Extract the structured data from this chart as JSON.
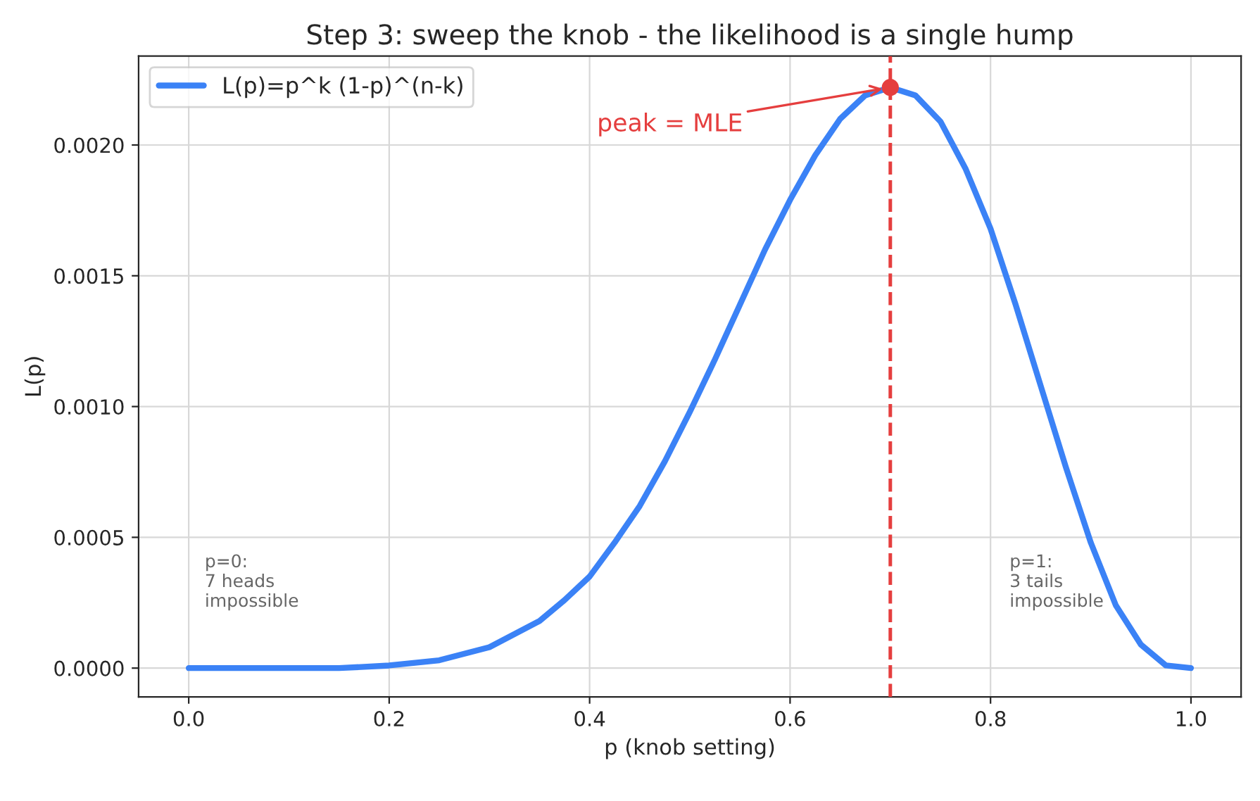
{
  "chart_data": {
    "type": "line",
    "title": "Step 3: sweep the knob - the likelihood is a single hump",
    "xlabel": "p (knob setting)",
    "ylabel": "L(p)",
    "series": [
      {
        "name": "L(p)=p^k (1-p)^(n-k)",
        "color": "#3b82f6",
        "x": [
          0,
          0.05,
          0.1,
          0.15,
          0.2,
          0.25,
          0.3,
          0.35,
          0.375,
          0.4,
          0.425,
          0.45,
          0.475,
          0.5,
          0.525,
          0.55,
          0.575,
          0.6,
          0.625,
          0.65,
          0.675,
          0.7,
          0.725,
          0.75,
          0.775,
          0.8,
          0.825,
          0.85,
          0.875,
          0.9,
          0.925,
          0.95,
          0.975,
          1.0
        ],
        "values": [
          0,
          0,
          0,
          0,
          1e-05,
          3e-05,
          8e-05,
          0.00018,
          0.00026,
          0.00035,
          0.00048,
          0.00062,
          0.00079,
          0.00098,
          0.00118,
          0.00139,
          0.0016,
          0.00179,
          0.00196,
          0.0021,
          0.00219,
          0.00222,
          0.00219,
          0.00209,
          0.00191,
          0.00168,
          0.00139,
          0.00108,
          0.00077,
          0.00048,
          0.00024,
          9e-05,
          1e-05,
          0
        ]
      },
      {
        "type": "scatter",
        "color": "#e53e3e",
        "x": [
          0.7
        ],
        "values": [
          0.00222
        ]
      }
    ],
    "ref_lines": [
      {
        "axis": "x",
        "value": 0.7,
        "color": "#e53e3e",
        "line_style": "dashed"
      }
    ],
    "annotations": [
      {
        "text": "peak = MLE",
        "x": 0.7,
        "y": 0.00222
      },
      "p=0:\n7 heads\nimpossible",
      "p=1:\n3 tails\nimpossible"
    ],
    "xlim": [
      -0.05,
      1.05
    ],
    "xticks": [
      {
        "value": 0,
        "label": "0.0"
      },
      0.2,
      0.4,
      0.6,
      0.8,
      {
        "value": 1,
        "label": "1.0"
      }
    ],
    "ylim": [
      -0.00011,
      0.00234
    ],
    "yticks": [
      {
        "value": 0,
        "label": "0.0000"
      },
      {
        "value": 0.0005,
        "label": "0.0005"
      },
      {
        "value": 0.001,
        "label": "0.0010"
      },
      {
        "value": 0.0015,
        "label": "0.0015"
      },
      {
        "value": 0.002,
        "label": "0.0020"
      }
    ],
    "grid": true,
    "legend": "top left",
    "line_style": "solid"
  }
}
